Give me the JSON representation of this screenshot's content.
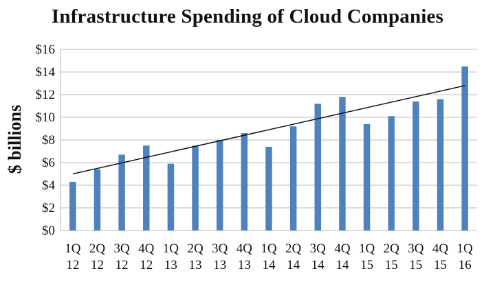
{
  "chart_data": {
    "type": "bar",
    "title": "Infrastructure Spending of Cloud Companies",
    "xlabel": "",
    "ylabel": "$ billions",
    "categories": [
      [
        "1Q",
        "12"
      ],
      [
        "2Q",
        "12"
      ],
      [
        "3Q",
        "12"
      ],
      [
        "4Q",
        "12"
      ],
      [
        "1Q",
        "13"
      ],
      [
        "2Q",
        "13"
      ],
      [
        "3Q",
        "13"
      ],
      [
        "4Q",
        "13"
      ],
      [
        "1Q",
        "14"
      ],
      [
        "2Q",
        "14"
      ],
      [
        "3Q",
        "14"
      ],
      [
        "4Q",
        "14"
      ],
      [
        "1Q",
        "15"
      ],
      [
        "2Q",
        "15"
      ],
      [
        "3Q",
        "15"
      ],
      [
        "4Q",
        "15"
      ],
      [
        "1Q",
        "16"
      ]
    ],
    "values": [
      4.3,
      5.4,
      6.7,
      7.5,
      5.9,
      7.5,
      8.0,
      8.6,
      7.4,
      9.2,
      11.2,
      11.8,
      9.4,
      10.1,
      11.4,
      11.6,
      14.5
    ],
    "trendline": {
      "type": "linear",
      "start": 5.0,
      "end": 12.8
    },
    "ylim": [
      0,
      16
    ],
    "yticks": [
      "$0",
      "$2",
      "$4",
      "$6",
      "$8",
      "$10",
      "$12",
      "$14",
      "$16"
    ],
    "grid": true,
    "legend": "none",
    "colors": {
      "bar": "#4f81bd",
      "trend": "#111111",
      "grid": "#b8b8b8"
    }
  }
}
